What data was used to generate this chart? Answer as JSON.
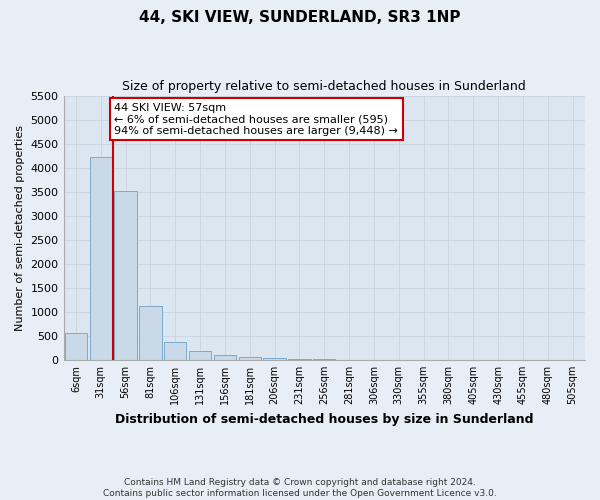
{
  "title": "44, SKI VIEW, SUNDERLAND, SR3 1NP",
  "subtitle": "Size of property relative to semi-detached houses in Sunderland",
  "xlabel": "Distribution of semi-detached houses by size in Sunderland",
  "ylabel": "Number of semi-detached properties",
  "footer": "Contains HM Land Registry data © Crown copyright and database right 2024.\nContains public sector information licensed under the Open Government Licence v3.0.",
  "annotation_line1": "44 SKI VIEW: 57sqm",
  "annotation_line2": "← 6% of semi-detached houses are smaller (595)",
  "annotation_line3": "94% of semi-detached houses are larger (9,448) →",
  "property_size_bin": 2,
  "ylim": [
    0,
    5500
  ],
  "bar_color": "#c9d9e8",
  "bar_edge_color": "#7ca9cc",
  "marker_color": "#cc0000",
  "categories": [
    "6sqm",
    "31sqm",
    "56sqm",
    "81sqm",
    "106sqm",
    "131sqm",
    "156sqm",
    "181sqm",
    "206sqm",
    "231sqm",
    "256sqm",
    "281sqm",
    "306sqm",
    "330sqm",
    "355sqm",
    "380sqm",
    "405sqm",
    "430sqm",
    "455sqm",
    "480sqm",
    "505sqm"
  ],
  "values": [
    570,
    4230,
    3510,
    1130,
    380,
    180,
    100,
    70,
    50,
    30,
    15,
    5,
    0,
    0,
    0,
    0,
    0,
    0,
    0,
    0,
    0
  ],
  "background_color": "#e8eef5",
  "grid_color": "#c8d4e0",
  "plot_bg_color": "#dce6f0"
}
